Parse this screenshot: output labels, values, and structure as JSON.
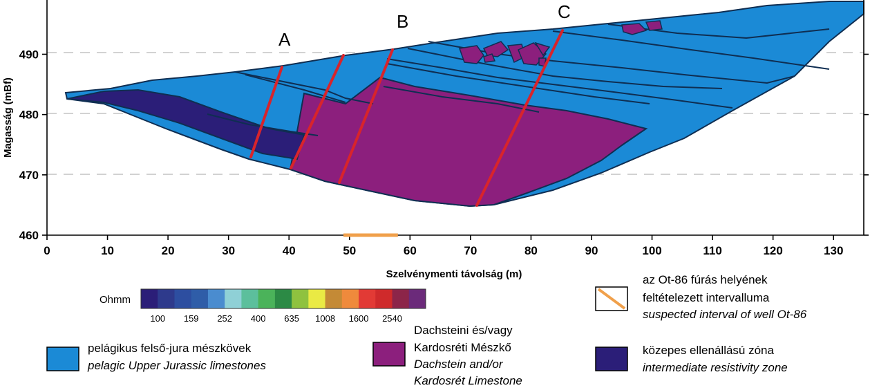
{
  "axes": {
    "ylabel": "Magasság (mBf)",
    "xlabel": "Szelvénymenti távolság (m)",
    "y_ticks": [
      "460",
      "470",
      "480",
      "490"
    ],
    "x_ticks": [
      "0",
      "10",
      "20",
      "30",
      "40",
      "50",
      "60",
      "70",
      "80",
      "90",
      "100",
      "110",
      "120",
      "130"
    ],
    "xlim": [
      0,
      135
    ],
    "ylim": [
      460,
      499
    ]
  },
  "sections": [
    {
      "label": "A"
    },
    {
      "label": "B"
    },
    {
      "label": "C"
    }
  ],
  "well_interval": {
    "from_m": 49,
    "to_m": 58
  },
  "colors": {
    "jurassic_limestone": "#1b8ad6",
    "dachstein_limestone": "#8c1f7d",
    "intermediate_zone": "#2b1e78",
    "fault": "#d8242b",
    "well_marker": "#f0a04b"
  },
  "scale": {
    "unit": "Ohmm",
    "labels": [
      "100",
      "159",
      "252",
      "400",
      "635",
      "1008",
      "1600",
      "2540"
    ],
    "colors": [
      "#2b1e78",
      "#2e3a8c",
      "#2d4ea0",
      "#2f5da8",
      "#4a8ccf",
      "#8fd0d6",
      "#5cbf9c",
      "#4bb35a",
      "#2c8a45",
      "#8fc23f",
      "#eaea44",
      "#c48a36",
      "#ef8a3c",
      "#e23a35",
      "#cf2a2b",
      "#8c2549",
      "#6b2a7a"
    ]
  },
  "legend": {
    "well": {
      "line1": "az Ot-86 fúrás helyének",
      "line2": "feltételezett intervalluma",
      "line3": "suspected interval of well Ot-86"
    },
    "jurassic": {
      "line1": "pelágikus felső-jura mészkövek",
      "line2": "pelagic Upper Jurassic limestones"
    },
    "dachstein": {
      "line1": "Dachsteini és/vagy",
      "line2": "Kardosréti Mészkő",
      "line3": "Dachstein and/or",
      "line4": "Kardosrét Limestone"
    },
    "intermediate": {
      "line1": "közepes ellenállású zóna",
      "line2": "intermediate resistivity zone"
    }
  }
}
